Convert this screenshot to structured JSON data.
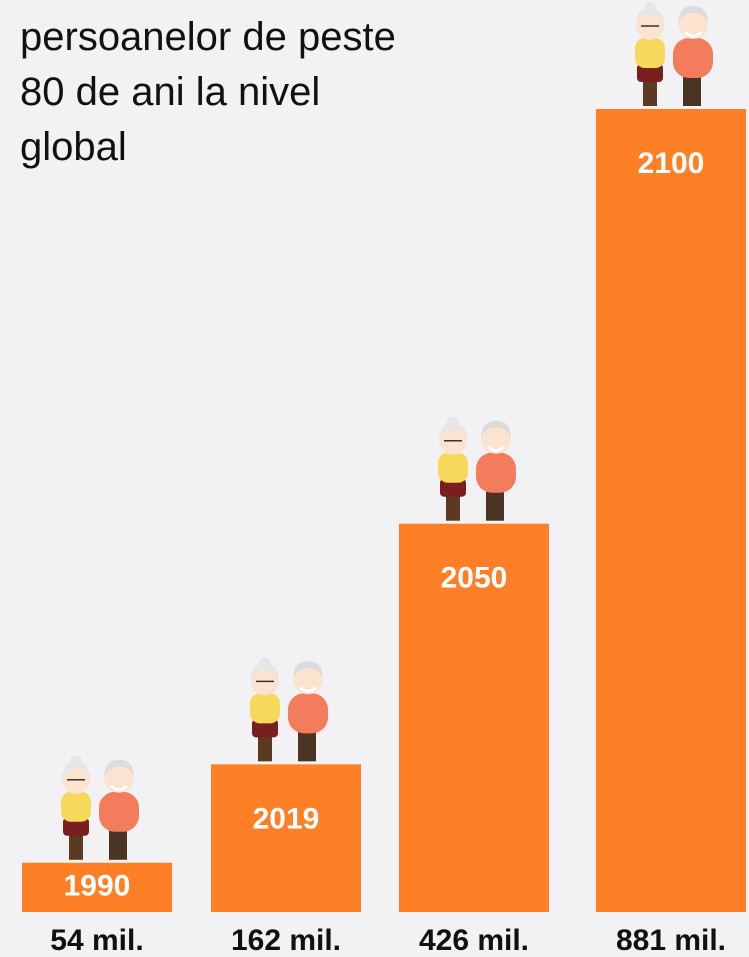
{
  "chart_data": {
    "type": "bar",
    "title": "persoanelor de peste 80 de ani la nivel global",
    "categories": [
      "1990",
      "2019",
      "2050",
      "2100"
    ],
    "values": [
      54,
      162,
      426,
      881
    ],
    "value_labels": [
      "54 mil.",
      "162 mil.",
      "426 mil.",
      "881 mil."
    ],
    "color": "#ff7f27"
  }
}
